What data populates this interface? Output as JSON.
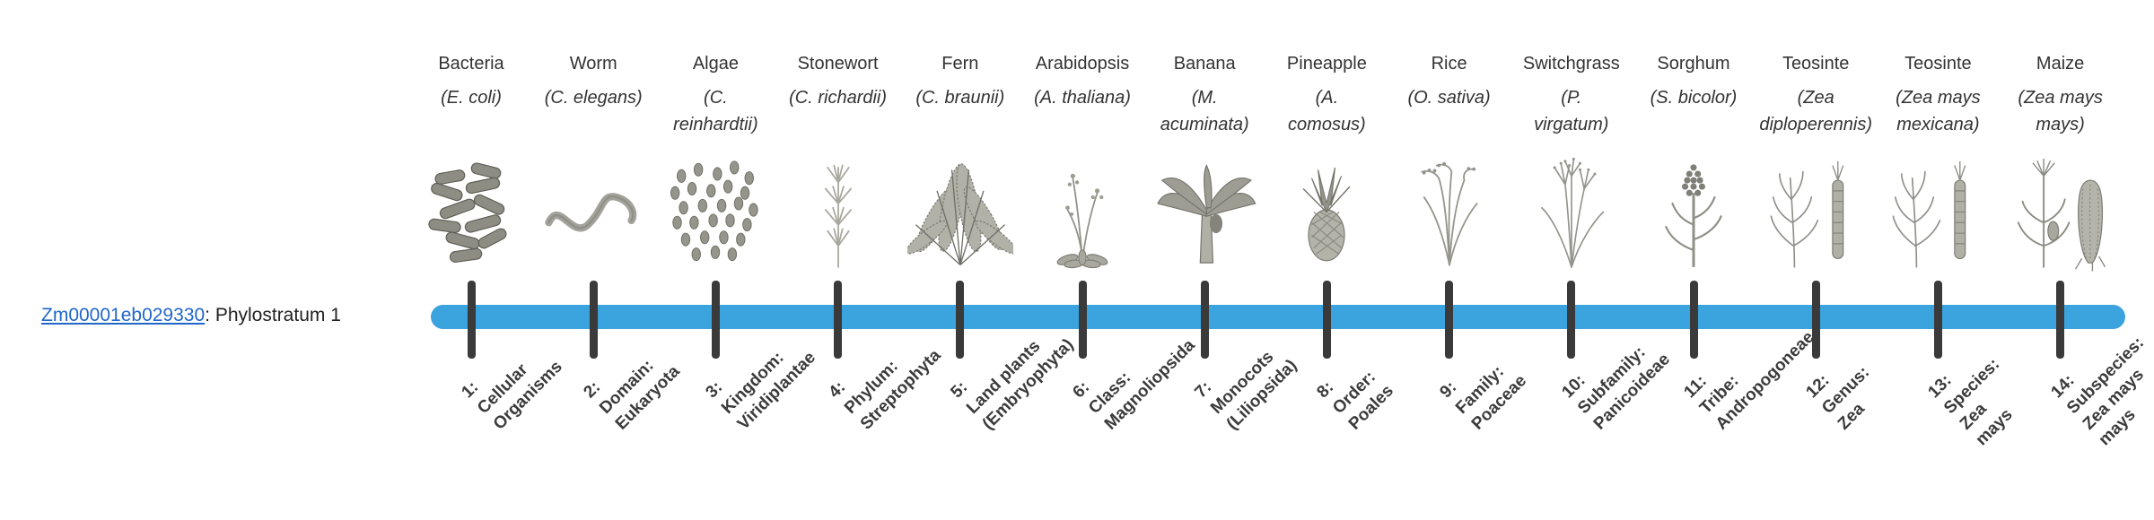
{
  "page": {
    "background": "#ffffff"
  },
  "gene": {
    "id": "Zm00001eb029330",
    "suffix": ": Phylostratum 1"
  },
  "colors": {
    "bar": "#3BA3DE",
    "tick": "#3A3A3A",
    "link": "#2166C9",
    "heading_text": "#333333",
    "stratum_text": "#3B3B3B",
    "sketch": "#8F8F87"
  },
  "taxa": [
    {
      "common": "Bacteria",
      "sci_lines": [
        "(E. coli)"
      ],
      "icon": "bacteria-icon",
      "stratum_lines": [
        "1:",
        "Cellular",
        "Organisms"
      ]
    },
    {
      "common": "Worm",
      "sci_lines": [
        "(C. elegans)"
      ],
      "icon": "worm-icon",
      "stratum_lines": [
        "2:",
        "Domain:",
        "Eukaryota"
      ]
    },
    {
      "common": "Algae",
      "sci_lines": [
        "(C.",
        "reinhardtii)"
      ],
      "icon": "algae-icon",
      "stratum_lines": [
        "3:",
        "Kingdom:",
        "Viridiplantae"
      ]
    },
    {
      "common": "Stonewort",
      "sci_lines": [
        "(C. richardii)"
      ],
      "icon": "stonewort-icon",
      "stratum_lines": [
        "4:",
        "Phylum:",
        "Streptophyta"
      ]
    },
    {
      "common": "Fern",
      "sci_lines": [
        "(C. braunii)"
      ],
      "icon": "fern-icon",
      "stratum_lines": [
        "5:",
        "Land plants",
        "(Embryophyta)"
      ]
    },
    {
      "common": "Arabidopsis",
      "sci_lines": [
        "(A. thaliana)"
      ],
      "icon": "arabidopsis-icon",
      "stratum_lines": [
        "6:",
        "Class:",
        "Magnoliopsida"
      ]
    },
    {
      "common": "Banana",
      "sci_lines": [
        "(M.",
        "acuminata)"
      ],
      "icon": "banana-icon",
      "stratum_lines": [
        "7:",
        "Monocots",
        "(Liliopsida)"
      ]
    },
    {
      "common": "Pineapple",
      "sci_lines": [
        "(A.",
        "comosus)"
      ],
      "icon": "pineapple-icon",
      "stratum_lines": [
        "8:",
        "Order:",
        "Poales"
      ]
    },
    {
      "common": "Rice",
      "sci_lines": [
        "(O. sativa)"
      ],
      "icon": "rice-icon",
      "stratum_lines": [
        "9:",
        "Family:",
        "Poaceae"
      ]
    },
    {
      "common": "Switchgrass",
      "sci_lines": [
        "(P.",
        "virgatum)"
      ],
      "icon": "switchgrass-icon",
      "stratum_lines": [
        "10:",
        "Subfamily:",
        "Panicoideae"
      ]
    },
    {
      "common": "Sorghum",
      "sci_lines": [
        "(S. bicolor)"
      ],
      "icon": "sorghum-icon",
      "stratum_lines": [
        "11:",
        "Tribe:",
        "Andropogoneae"
      ]
    },
    {
      "common": "Teosinte",
      "sci_lines": [
        "(Zea",
        "diploperennis)"
      ],
      "icon": "teosinte-icon",
      "stratum_lines": [
        "12:",
        "Genus:",
        "Zea"
      ]
    },
    {
      "common": "Teosinte",
      "sci_lines": [
        "(Zea mays",
        "mexicana)"
      ],
      "icon": "teosinte-icon",
      "stratum_lines": [
        "13:",
        "Species:",
        "Zea",
        "mays"
      ]
    },
    {
      "common": "Maize",
      "sci_lines": [
        "(Zea mays",
        "mays)"
      ],
      "icon": "maize-icon",
      "stratum_lines": [
        "14:",
        "Subspecies:",
        "Zea mays",
        "mays"
      ]
    }
  ]
}
